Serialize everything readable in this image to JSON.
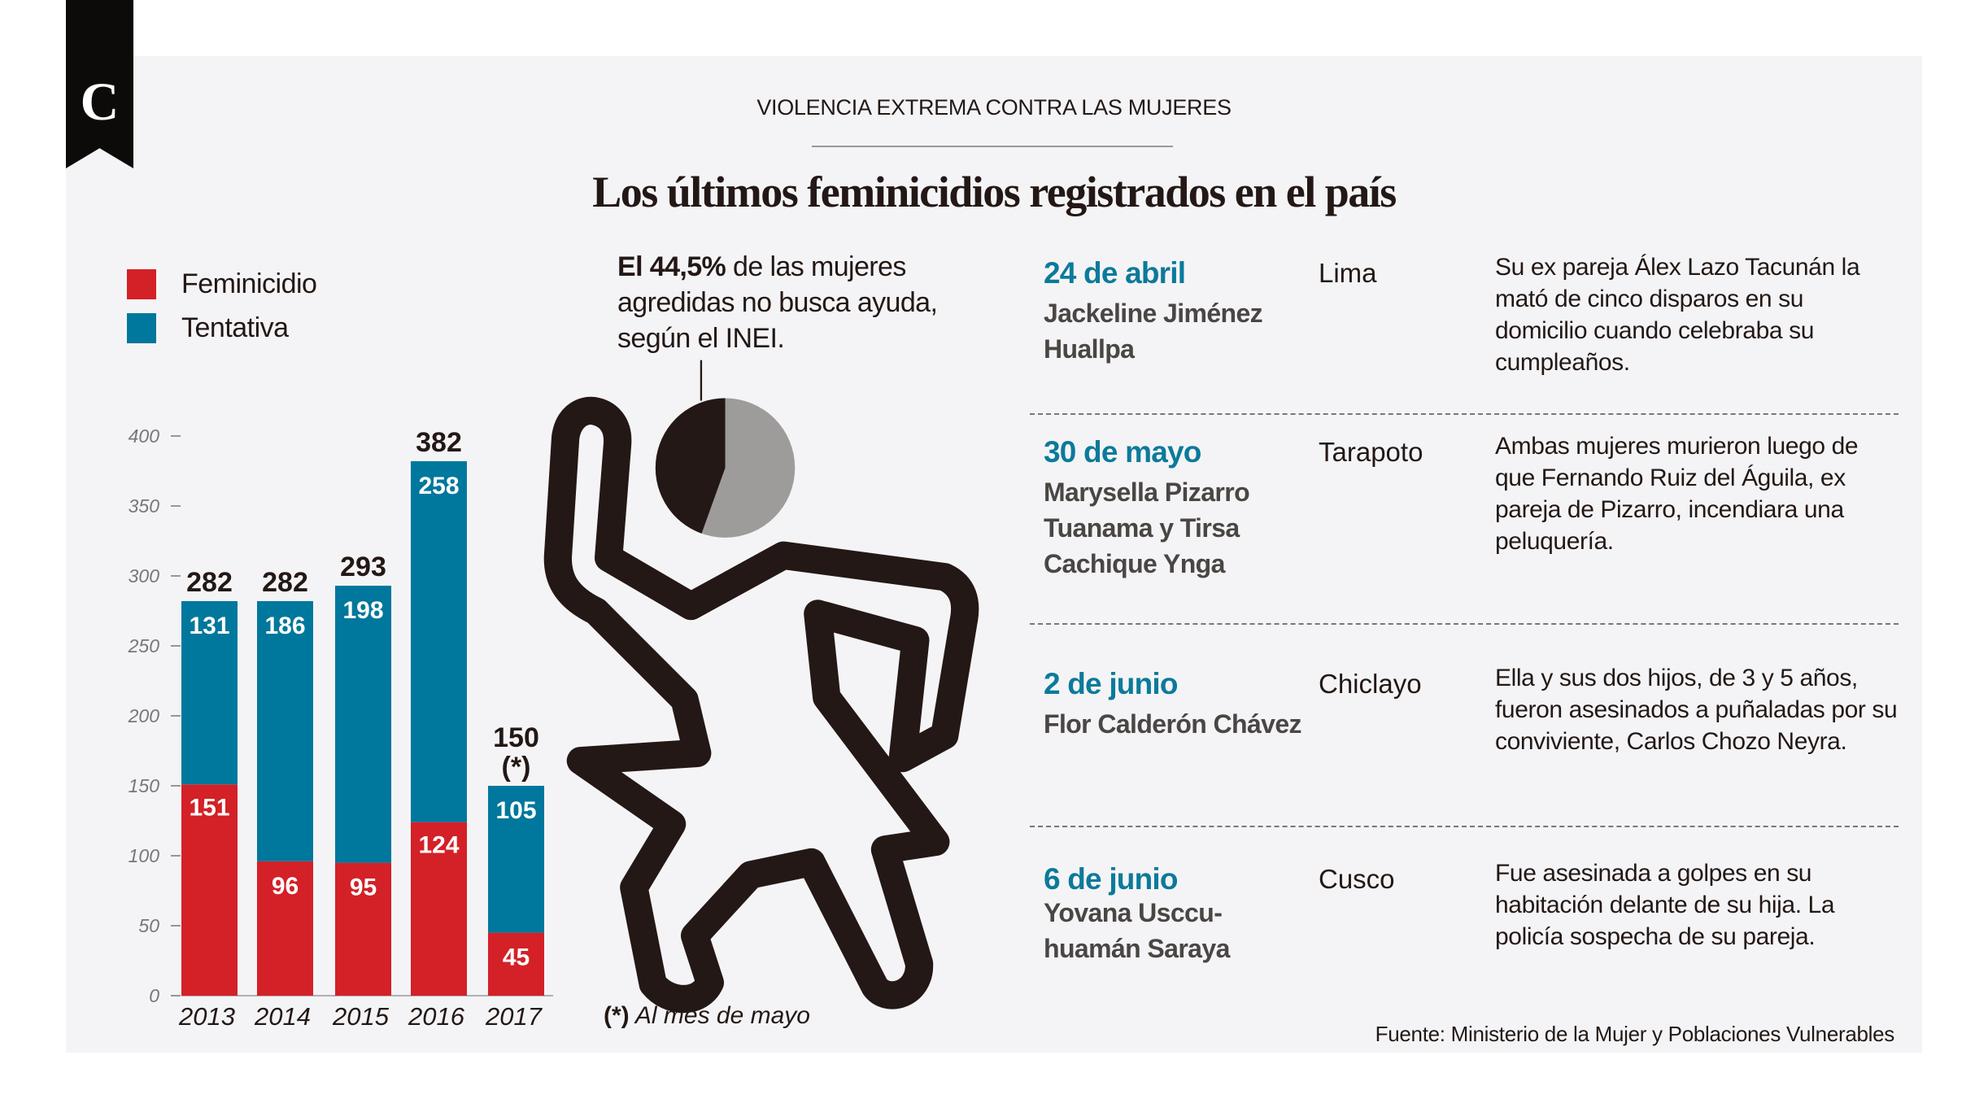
{
  "logo": {
    "letter": "C"
  },
  "kicker": "VIOLENCIA EXTREMA CONTRA LAS MUJERES",
  "title": "Los últimos feminicidios registrados en el país",
  "colors": {
    "feminicidio": "#d42027",
    "tentativa": "#00779c",
    "figure": "#231815",
    "pie_rest": "#9d9c9a",
    "panel": "#f4f4f6"
  },
  "legend": [
    {
      "label": "Feminicidio"
    },
    {
      "label": "Tentativa"
    }
  ],
  "note": {
    "bold": "El 44,5%",
    "rest1": " de las mujeres",
    "line2": "agredidas no busca ayuda,",
    "line3": "según el INEI."
  },
  "pie": {
    "percent": 44.5
  },
  "footnote": {
    "mark": "(*)",
    "text": " Al mes de mayo"
  },
  "chart_data": {
    "type": "bar",
    "stacked": true,
    "categories": [
      "2013",
      "2014",
      "2015",
      "2016",
      "2017"
    ],
    "series": [
      {
        "name": "Feminicidio",
        "values": [
          151,
          96,
          95,
          124,
          45
        ]
      },
      {
        "name": "Tentativa",
        "values": [
          131,
          186,
          198,
          258,
          105
        ]
      }
    ],
    "totals": [
      "282",
      "282",
      "293",
      "382",
      "150"
    ],
    "total_note_2017": "(*)",
    "yticks": [
      0,
      50,
      100,
      150,
      200,
      250,
      300,
      350,
      400
    ],
    "ylim": [
      0,
      400
    ],
    "grid": false,
    "legend_position": "top-left"
  },
  "cases": [
    {
      "date": "24 de abril",
      "name": "Jackeline Jiménez Huallpa",
      "city": "Lima",
      "desc": "Su ex pareja Álex Lazo Tacunán la mató de cinco disparos en su domicilio cuando celebraba su cumpleaños."
    },
    {
      "date": "30 de mayo",
      "name": "Marysella Pizarro Tuanama y Tirsa Cachique Ynga",
      "city": "Tarapoto",
      "desc": "Ambas mujeres murieron luego de que Fernando Ruiz del Águila, ex pareja de Pizarro, incendiara una peluquería."
    },
    {
      "date": "2 de junio",
      "name": "Flor Calderón Chávez",
      "city": "Chiclayo",
      "desc": "Ella y sus dos hijos, de 3 y 5 años, fueron asesinados a puñaladas por su conviviente, Carlos Chozo Neyra."
    },
    {
      "date": "6 de junio",
      "name": "Yovana Usccu-huamán Saraya",
      "city": "Cusco",
      "desc": "Fue asesinada a golpes en su habitación delante de su hija. La policía sospecha de su pareja."
    }
  ],
  "source": "Fuente: Ministerio de la Mujer y Poblaciones Vulnerables"
}
